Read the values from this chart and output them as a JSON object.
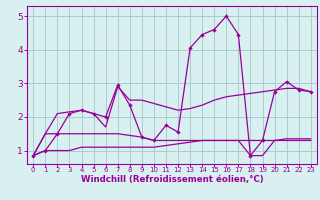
{
  "x": [
    0,
    1,
    2,
    3,
    4,
    5,
    6,
    7,
    8,
    9,
    10,
    11,
    12,
    13,
    14,
    15,
    16,
    17,
    18,
    19,
    20,
    21,
    22,
    23
  ],
  "line1": [
    0.85,
    1.0,
    1.5,
    2.1,
    2.2,
    2.1,
    2.0,
    2.95,
    2.35,
    1.4,
    1.3,
    1.75,
    1.55,
    4.05,
    4.45,
    4.6,
    5.0,
    4.45,
    0.85,
    1.3,
    2.75,
    3.05,
    2.8,
    2.75
  ],
  "line2": [
    0.85,
    1.5,
    2.1,
    2.15,
    2.2,
    2.1,
    1.7,
    2.9,
    2.5,
    2.5,
    2.4,
    2.3,
    2.2,
    2.25,
    2.35,
    2.5,
    2.6,
    2.65,
    2.7,
    2.75,
    2.8,
    2.85,
    2.85,
    2.75
  ],
  "line3": [
    0.85,
    1.5,
    1.5,
    1.5,
    1.5,
    1.5,
    1.5,
    1.5,
    1.45,
    1.4,
    1.3,
    1.3,
    1.3,
    1.3,
    1.3,
    1.3,
    1.3,
    1.3,
    0.85,
    0.85,
    1.3,
    1.3,
    1.3,
    1.3
  ],
  "line4": [
    0.85,
    1.0,
    1.0,
    1.0,
    1.1,
    1.1,
    1.1,
    1.1,
    1.1,
    1.1,
    1.1,
    1.15,
    1.2,
    1.25,
    1.3,
    1.3,
    1.3,
    1.3,
    1.3,
    1.3,
    1.3,
    1.35,
    1.35,
    1.35
  ],
  "color": "#990099",
  "bg_color": "#d9f0f0",
  "grid_color": "#aacccc",
  "xlabel": "Windchill (Refroidissement éolien,°C)",
  "ylim": [
    0.6,
    5.3
  ],
  "xlim": [
    -0.5,
    23.5
  ],
  "yticks": [
    1,
    2,
    3,
    4,
    5
  ],
  "xticks": [
    0,
    1,
    2,
    3,
    4,
    5,
    6,
    7,
    8,
    9,
    10,
    11,
    12,
    13,
    14,
    15,
    16,
    17,
    18,
    19,
    20,
    21,
    22,
    23
  ],
  "tick_fontsize": 5.0,
  "ylabel_fontsize": 6.5,
  "xlabel_fontsize": 6.2
}
